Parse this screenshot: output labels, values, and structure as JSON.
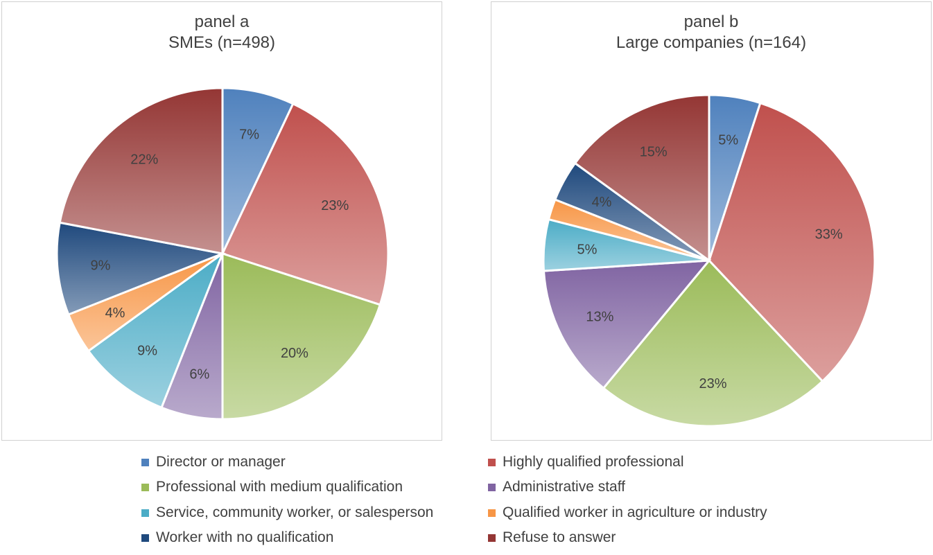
{
  "chart_data": [
    {
      "type": "pie",
      "title": "panel a",
      "subtitle": "SMEs (n=498)",
      "categories": [
        "Director or manager",
        "Highly qualified professional",
        "Professional with medium qualification",
        "Administrative staff",
        "Service, community worker, or salesperson",
        "Qualified worker in agriculture or industry",
        "Worker with no qualification",
        "Refuse to answer"
      ],
      "values": [
        7,
        23,
        20,
        6,
        9,
        4,
        9,
        22
      ],
      "labels": [
        "7%",
        "23%",
        "20%",
        "6%",
        "9%",
        "4%",
        "9%",
        "22%"
      ]
    },
    {
      "type": "pie",
      "title": "panel b",
      "subtitle": "Large companies (n=164)",
      "categories": [
        "Director or manager",
        "Highly qualified professional",
        "Professional with medium qualification",
        "Administrative staff",
        "Service, community worker, or salesperson",
        "Qualified worker in agriculture or industry",
        "Worker with no qualification",
        "Refuse to answer"
      ],
      "values": [
        5,
        33,
        23,
        13,
        5,
        2,
        4,
        15
      ],
      "labels": [
        "5%",
        "33%",
        "23%",
        "13%",
        "5%",
        "",
        "4%",
        "15%"
      ]
    }
  ],
  "legend": {
    "position": "bottom",
    "items": [
      {
        "label": "Director or manager",
        "color": "#4f81bd"
      },
      {
        "label": "Highly qualified professional",
        "color": "#c0504d"
      },
      {
        "label": "Professional with medium qualification",
        "color": "#9bbb59"
      },
      {
        "label": "Administrative staff",
        "color": "#8064a2"
      },
      {
        "label": "Service, community worker, or salesperson",
        "color": "#4bacc6"
      },
      {
        "label": "Qualified worker in agriculture or industry",
        "color": "#f79646"
      },
      {
        "label": "Worker with no qualification",
        "color": "#1f497d"
      },
      {
        "label": "Refuse to answer",
        "color": "#943634"
      }
    ]
  },
  "colors": {
    "director": "#4f81bd",
    "highly_qualified": "#c0504d",
    "medium_qualification": "#9bbb59",
    "administrative": "#8064a2",
    "service": "#4bacc6",
    "agri_industry": "#f79646",
    "no_qualification": "#1f497d",
    "refuse": "#943634"
  }
}
